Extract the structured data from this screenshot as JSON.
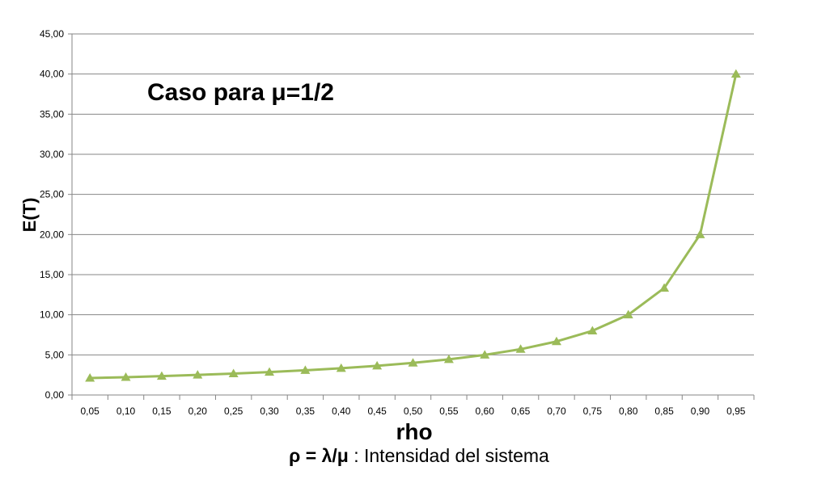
{
  "chart_data": {
    "type": "line",
    "title": "Caso para μ=1/2",
    "xlabel": "rho",
    "ylabel": "E(T)",
    "subtitle_symbol": "ρ = λ/μ",
    "subtitle_text": " : Intensidad del sistema",
    "categories": [
      "0,05",
      "0,10",
      "0,15",
      "0,20",
      "0,25",
      "0,30",
      "0,35",
      "0,40",
      "0,45",
      "0,50",
      "0,55",
      "0,60",
      "0,65",
      "0,70",
      "0,75",
      "0,80",
      "0,85",
      "0,90",
      "0,95"
    ],
    "series": [
      {
        "values": [
          2.11,
          2.22,
          2.35,
          2.5,
          2.67,
          2.86,
          3.08,
          3.33,
          3.64,
          4.0,
          4.44,
          5.0,
          5.71,
          6.67,
          8.0,
          10.0,
          13.33,
          20.0,
          40.0
        ],
        "color": "#9bbb59",
        "marker": "triangle"
      }
    ],
    "ylim": [
      0,
      45
    ],
    "yticks": [
      "0,00",
      "5,00",
      "10,00",
      "15,00",
      "20,00",
      "25,00",
      "30,00",
      "35,00",
      "40,00",
      "45,00"
    ],
    "grid": true,
    "gridline_color": "#868686",
    "legend": "none"
  }
}
